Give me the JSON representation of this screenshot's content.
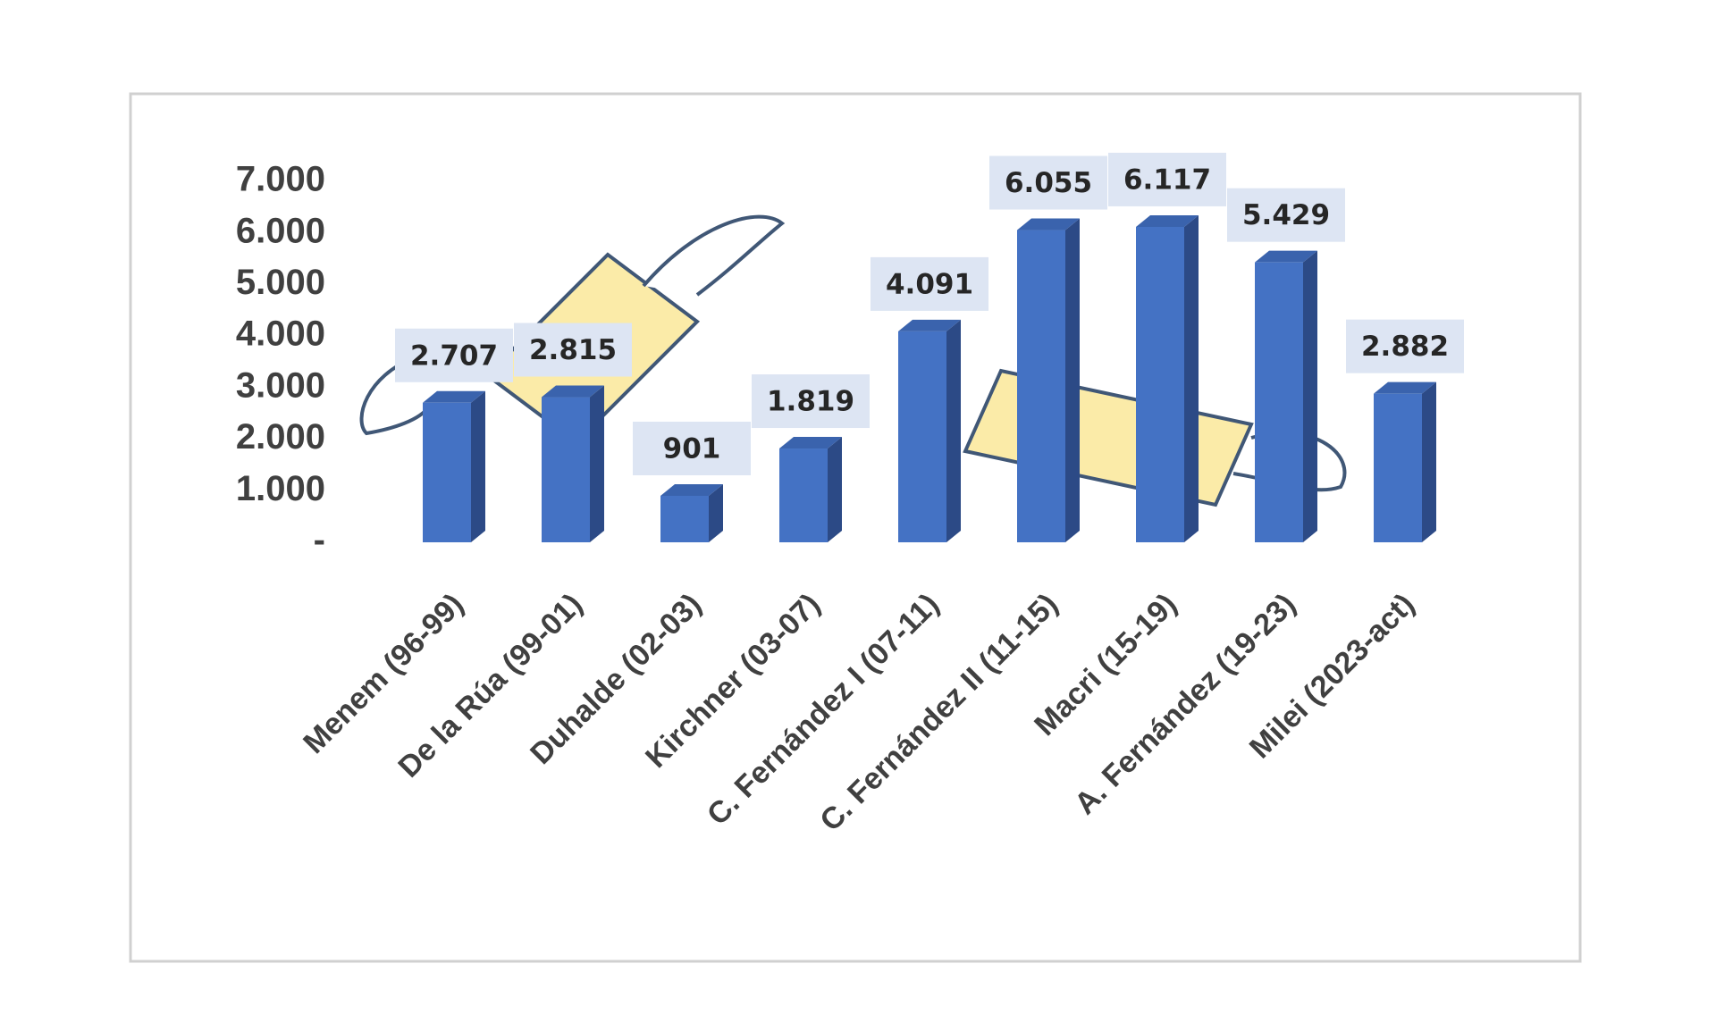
{
  "chart_data": {
    "type": "bar",
    "categories": [
      "Menem (96-99)",
      "De la Rúa (99-01)",
      "Duhalde (02-03)",
      "Kirchner (03-07)",
      "C. Fernández I (07-11)",
      "C. Fernández II (11-15)",
      "Macri (15-19)",
      "A. Fernández (19-23)",
      "Milei (2023-act)"
    ],
    "values": [
      2707,
      2815,
      901,
      1819,
      4091,
      6055,
      6117,
      5429,
      2882
    ],
    "value_labels": [
      "2.707",
      "2.815",
      "901",
      "1.819",
      "4.091",
      "6.055",
      "6.117",
      "5.429",
      "2.882"
    ],
    "color": "#4472c4",
    "ylim": [
      0,
      7000
    ],
    "yticks": [
      {
        "value": 0,
        "label": "-"
      },
      {
        "value": 1000,
        "label": "1.000"
      },
      {
        "value": 2000,
        "label": "2.000"
      },
      {
        "value": 3000,
        "label": "3.000"
      },
      {
        "value": 4000,
        "label": "4.000"
      },
      {
        "value": 5000,
        "label": "5.000"
      },
      {
        "value": 6000,
        "label": "6.000"
      },
      {
        "value": 7000,
        "label": "7.000"
      }
    ]
  }
}
